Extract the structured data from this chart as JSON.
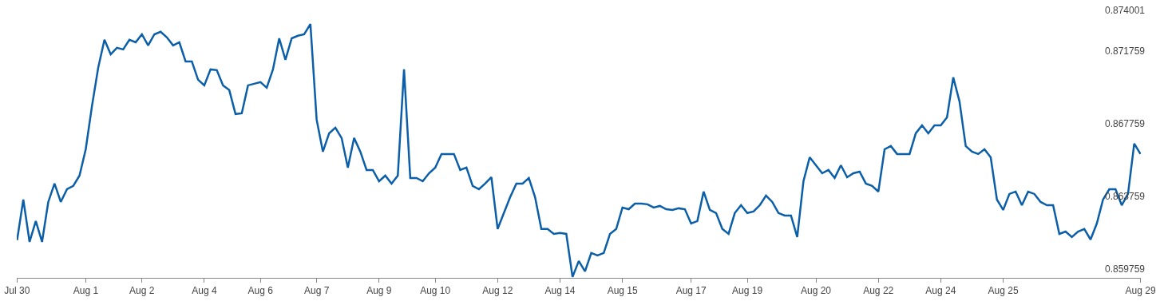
{
  "chart_data": {
    "type": "line",
    "categories": [
      "Jul 30",
      null,
      null,
      null,
      null,
      null,
      null,
      null,
      null,
      null,
      null,
      "Aug 1",
      null,
      null,
      null,
      null,
      null,
      null,
      null,
      null,
      "Aug 2",
      null,
      null,
      null,
      null,
      null,
      null,
      null,
      null,
      null,
      "Aug 4",
      null,
      null,
      null,
      null,
      null,
      null,
      null,
      null,
      "Aug 6",
      null,
      null,
      null,
      null,
      null,
      null,
      null,
      null,
      "Aug 7",
      null,
      null,
      null,
      null,
      null,
      null,
      null,
      null,
      null,
      "Aug 9",
      null,
      null,
      null,
      null,
      null,
      null,
      null,
      null,
      "Aug 10",
      null,
      null,
      null,
      null,
      null,
      null,
      null,
      null,
      null,
      "Aug 12",
      null,
      null,
      null,
      null,
      null,
      null,
      null,
      null,
      null,
      "Aug 14",
      null,
      null,
      null,
      null,
      null,
      null,
      null,
      null,
      null,
      "Aug 15",
      null,
      null,
      null,
      null,
      null,
      null,
      null,
      null,
      null,
      null,
      "Aug 17",
      null,
      null,
      null,
      null,
      null,
      null,
      null,
      null,
      "Aug 19",
      null,
      null,
      null,
      null,
      null,
      null,
      null,
      null,
      null,
      null,
      "Aug 20",
      null,
      null,
      null,
      null,
      null,
      null,
      null,
      null,
      null,
      "Aug 22",
      null,
      null,
      null,
      null,
      null,
      null,
      null,
      null,
      null,
      "Aug 24",
      null,
      null,
      null,
      null,
      null,
      null,
      null,
      null,
      null,
      "Aug 25",
      null,
      null,
      null,
      null,
      null,
      null,
      null,
      null,
      null,
      null,
      null,
      null,
      null,
      null,
      null,
      null,
      null,
      null,
      null,
      null,
      null,
      "Aug 29"
    ],
    "series": [
      {
        "color": "#0b5ea8",
        "values": [
          0.86134,
          0.86358,
          0.86125,
          0.8624,
          0.86125,
          0.86345,
          0.86446,
          0.86345,
          0.86415,
          0.86433,
          0.8649,
          0.86635,
          0.86873,
          0.87084,
          0.87238,
          0.87158,
          0.87194,
          0.87185,
          0.87238,
          0.87224,
          0.87268,
          0.87207,
          0.87268,
          0.87282,
          0.87251,
          0.87207,
          0.87224,
          0.87119,
          0.87119,
          0.87018,
          0.86987,
          0.87075,
          0.87071,
          0.86987,
          0.86961,
          0.86829,
          0.86833,
          0.86987,
          0.86996,
          0.87005,
          0.86974,
          0.87075,
          0.87246,
          0.87128,
          0.87246,
          0.8726,
          0.87268,
          0.87325,
          0.86798,
          0.86622,
          0.86723,
          0.86754,
          0.86697,
          0.86534,
          0.86697,
          0.86622,
          0.86521,
          0.86521,
          0.86459,
          0.8649,
          0.86446,
          0.8649,
          0.87075,
          0.86477,
          0.86477,
          0.86459,
          0.86503,
          0.86534,
          0.86609,
          0.86609,
          0.86609,
          0.86521,
          0.86534,
          0.86433,
          0.86415,
          0.86446,
          0.86481,
          0.86196,
          0.86284,
          0.86371,
          0.86446,
          0.86446,
          0.86477,
          0.86371,
          0.86196,
          0.86196,
          0.86169,
          0.86174,
          0.86169,
          0.85932,
          0.8602,
          0.85963,
          0.86064,
          0.86051,
          0.86064,
          0.86169,
          0.86196,
          0.86314,
          0.86305,
          0.86336,
          0.86336,
          0.86332,
          0.86314,
          0.86323,
          0.86305,
          0.86301,
          0.8631,
          0.86305,
          0.86226,
          0.8624,
          0.86402,
          0.86301,
          0.86284,
          0.86196,
          0.86169,
          0.86284,
          0.86327,
          0.86284,
          0.86292,
          0.86327,
          0.8638,
          0.86345,
          0.86284,
          0.8627,
          0.8627,
          0.86152,
          0.86459,
          0.86591,
          0.86547,
          0.86503,
          0.86521,
          0.86477,
          0.86547,
          0.86481,
          0.86503,
          0.86512,
          0.86446,
          0.86433,
          0.86402,
          0.86635,
          0.86653,
          0.86609,
          0.86609,
          0.86609,
          0.86723,
          0.86767,
          0.86723,
          0.86767,
          0.86767,
          0.86811,
          0.87031,
          0.86899,
          0.86653,
          0.86622,
          0.86609,
          0.86635,
          0.86591,
          0.86358,
          0.86301,
          0.86389,
          0.86402,
          0.86327,
          0.86402,
          0.86389,
          0.86345,
          0.86327,
          0.86327,
          0.86169,
          0.86182,
          0.86152,
          0.86182,
          0.86196,
          0.86138,
          0.86226,
          0.86358,
          0.86415,
          0.86415,
          0.86327,
          0.86389,
          0.86666,
          0.86609
        ]
      }
    ],
    "ylim": [
      0.85927,
      0.87457
    ],
    "yticks": [
      0.859759,
      0.863759,
      0.867759,
      0.871759,
      0.874001
    ]
  }
}
